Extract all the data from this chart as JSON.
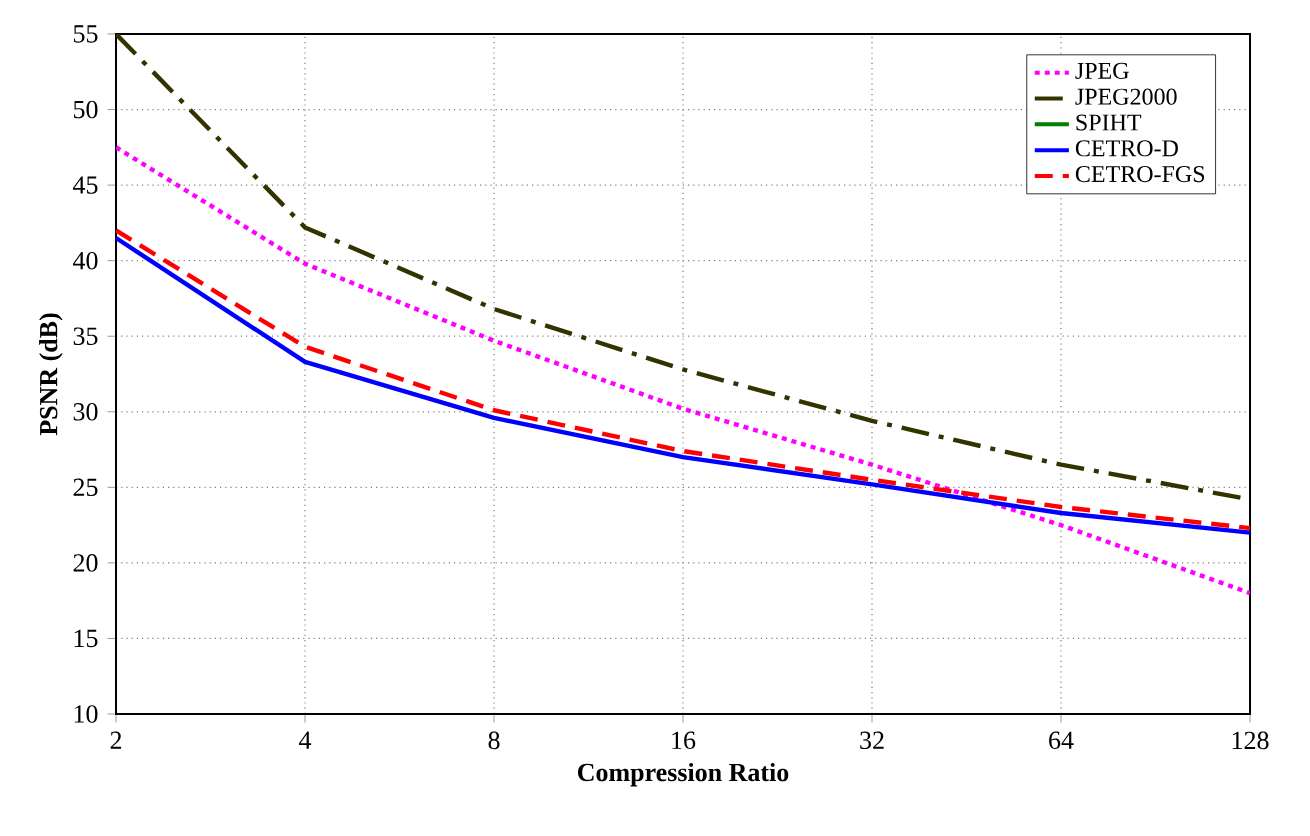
{
  "chart_data": {
    "type": "line",
    "xlabel": "Compression Ratio",
    "ylabel": "PSNR (dB)",
    "x": [
      2,
      4,
      8,
      16,
      32,
      64,
      128
    ],
    "log": "x",
    "xlim": [
      2,
      128
    ],
    "xticks": [
      2,
      4,
      8,
      16,
      32,
      64,
      128
    ],
    "ylim": [
      10,
      55
    ],
    "yticks": [
      10,
      15,
      20,
      25,
      30,
      35,
      40,
      45,
      50,
      55
    ],
    "grid": true,
    "legend": "top right",
    "marker": "none",
    "series": [
      {
        "name": "JPEG",
        "color": "#ff00ff",
        "line_style": "dotted",
        "values": [
          47.5,
          39.8,
          34.7,
          30.2,
          26.5,
          22.5,
          18
        ]
      },
      {
        "name": "JPEG2000",
        "color": "#333300",
        "line_style": "dashdot",
        "values": [
          55,
          42.2,
          36.8,
          32.8,
          29.4,
          26.5,
          24.2
        ]
      },
      {
        "name": "SPIHT",
        "color": "#008000",
        "line_style": "solid",
        "values": [
          null,
          null,
          null,
          null,
          null,
          null,
          null
        ]
      },
      {
        "name": "CETRO-D",
        "color": "#0000ff",
        "line_style": "solid",
        "values": [
          41.5,
          33.3,
          29.6,
          27,
          25.2,
          23.3,
          22
        ]
      },
      {
        "name": "CETRO-FGS",
        "color": "#ff0000",
        "line_style": "dashed",
        "values": [
          42,
          34.3,
          30.1,
          27.4,
          25.5,
          23.7,
          22.3
        ]
      }
    ]
  }
}
